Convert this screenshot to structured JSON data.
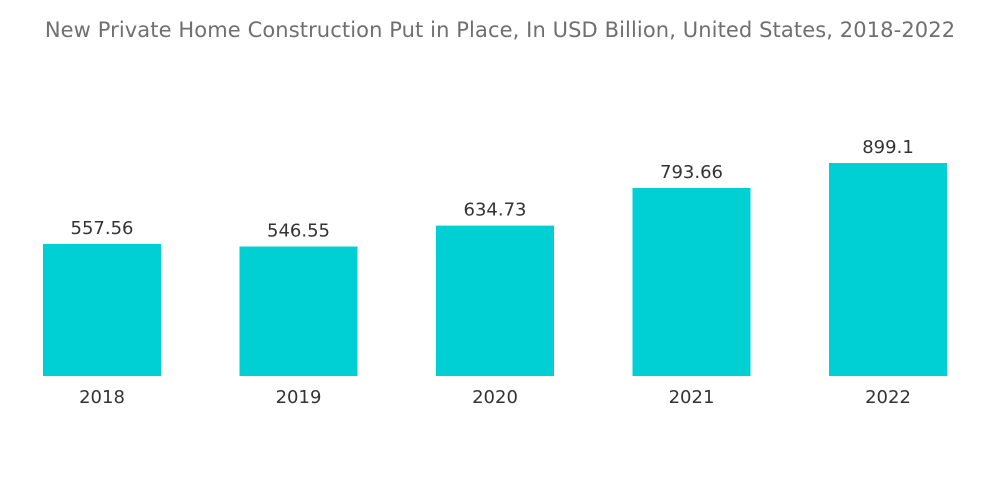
{
  "chart_data": {
    "type": "bar",
    "title": "New Private Home Construction Put in Place, In USD Billion, United States, 2018-2022",
    "categories": [
      "2018",
      "2019",
      "2020",
      "2021",
      "2022"
    ],
    "values": [
      557.56,
      546.55,
      634.73,
      793.66,
      899.1
    ],
    "value_labels": [
      "557.56",
      "546.55",
      "634.73",
      "793.66",
      "899.1"
    ],
    "xlabel": "",
    "ylabel": "",
    "ylim": [
      0,
      899.1
    ],
    "grid": false,
    "legend": "none",
    "bar_color": "#00cfd4"
  }
}
